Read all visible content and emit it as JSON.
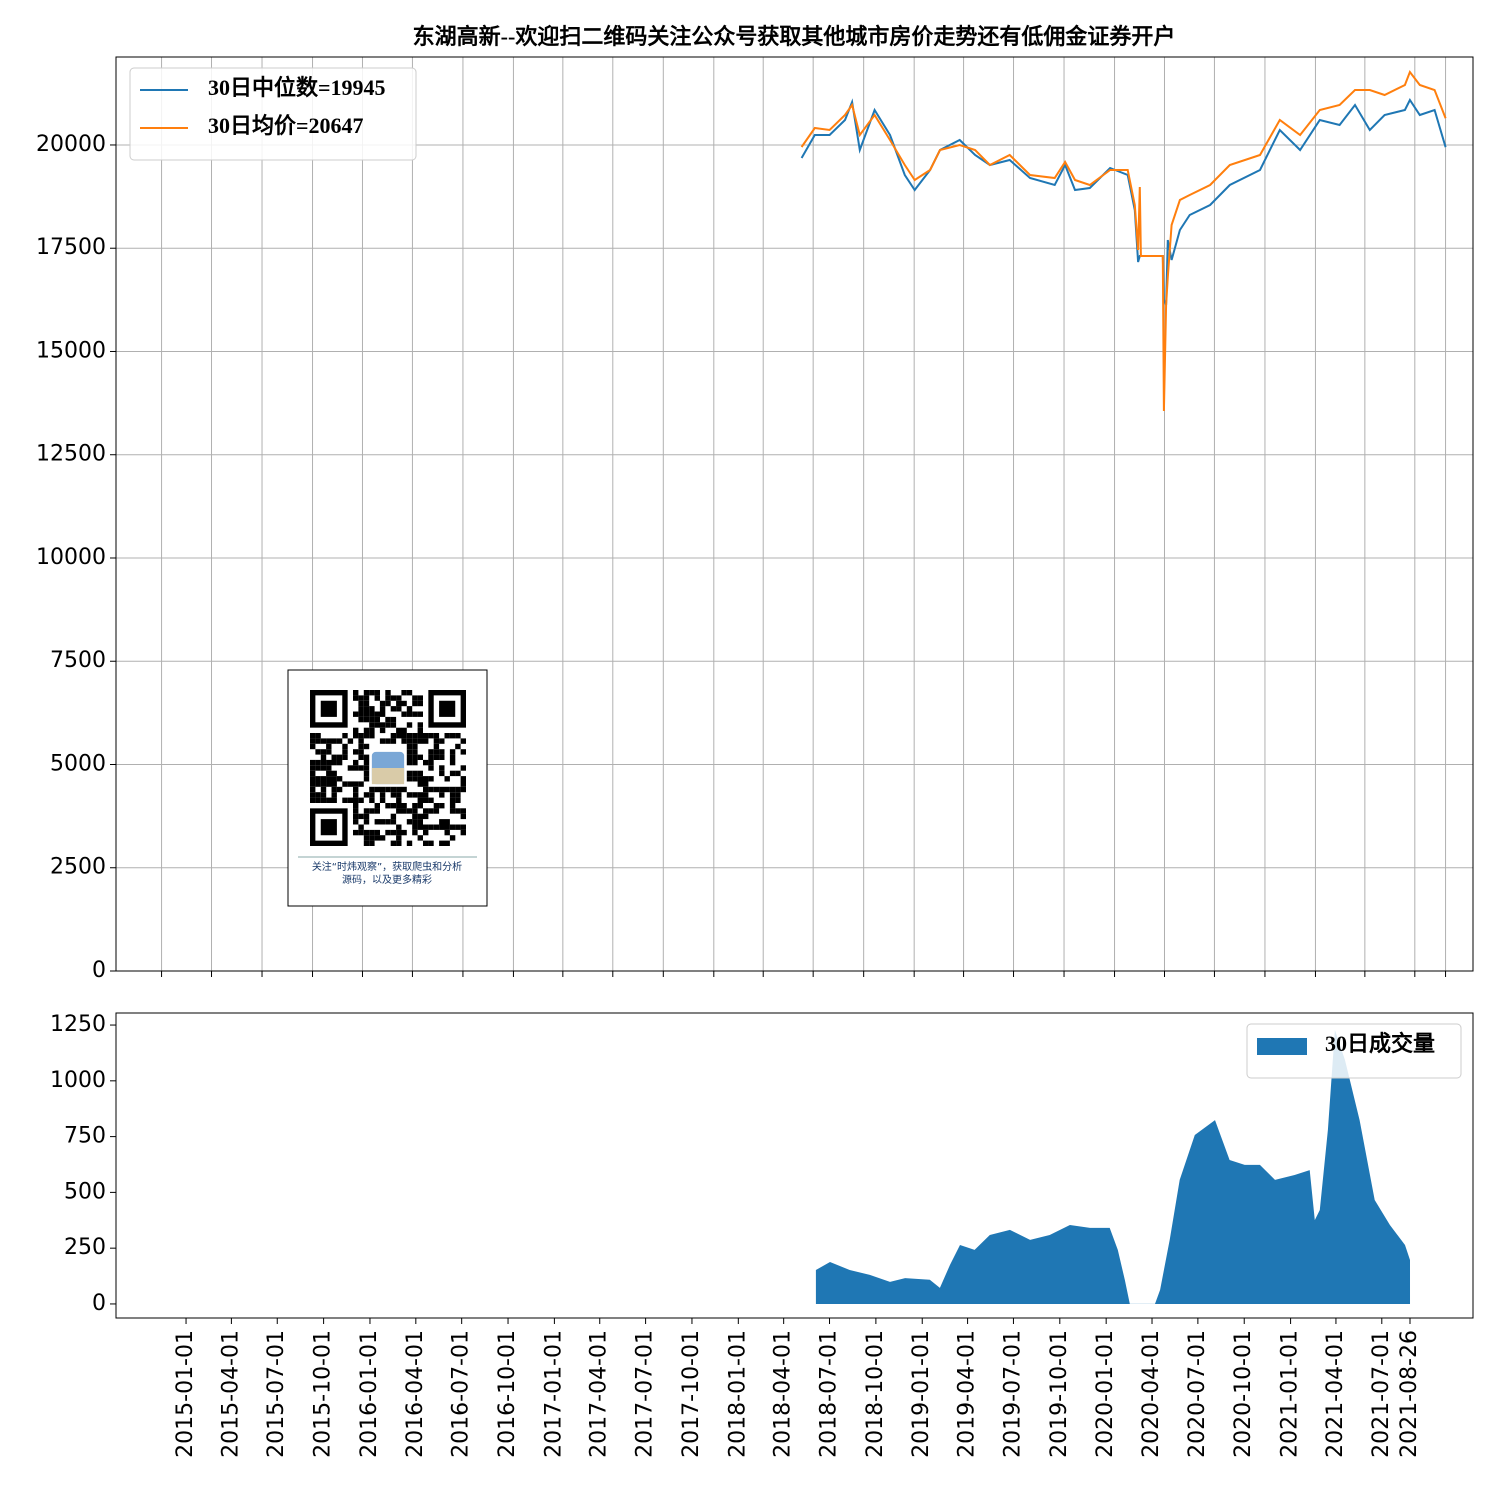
{
  "chart_data": [
    {
      "type": "line",
      "title": "东湖高新--欢迎扫二维码关注公众号获取其他城市房价走势还有低佣金证券开户",
      "legend": "upper left",
      "grid": true,
      "xlim": [
        "2015-01-08",
        "2021-10-15"
      ],
      "xticks": [
        "2015-04-01",
        "2015-07-01",
        "2015-10-01",
        "2016-01-01",
        "2016-04-01",
        "2016-07-01",
        "2016-10-01",
        "2017-01-01",
        "2017-04-01",
        "2017-07-01",
        "2017-10-01",
        "2018-01-01",
        "2018-04-01",
        "2018-07-01",
        "2018-10-01",
        "2019-01-01",
        "2019-04-01",
        "2019-07-01",
        "2019-10-01",
        "2020-01-01",
        "2020-04-01",
        "2020-07-01",
        "2020-10-01",
        "2021-01-01",
        "2021-04-01",
        "2021-07-01",
        "2021-08-26"
      ],
      "ylim": [
        0,
        22130
      ],
      "yticks": [
        0,
        2500,
        5000,
        7500,
        10000,
        12500,
        15000,
        17500,
        20000
      ],
      "x": [
        "2018-06-10",
        "2018-07-04",
        "2018-07-31",
        "2018-08-28",
        "2018-09-10",
        "2018-09-24",
        "2018-10-21",
        "2018-11-18",
        "2018-12-15",
        "2019-01-02",
        "2019-01-30",
        "2019-02-17",
        "2019-03-25",
        "2019-04-22",
        "2019-05-19",
        "2019-06-24",
        "2019-07-31",
        "2019-09-14",
        "2019-10-03",
        "2019-10-21",
        "2019-11-17",
        "2019-12-24",
        "2020-01-25",
        "2020-02-07",
        "2020-02-13",
        "2020-02-16",
        "2020-02-18",
        "2020-03-29",
        "2020-03-31",
        "2020-04-04",
        "2020-04-07",
        "2020-04-14",
        "2020-04-29",
        "2020-05-17",
        "2020-06-23",
        "2020-07-29",
        "2020-09-22",
        "2020-10-28",
        "2020-12-04",
        "2021-01-09",
        "2021-02-14",
        "2021-03-14",
        "2021-04-10",
        "2021-05-07",
        "2021-06-13",
        "2021-06-22",
        "2021-07-10",
        "2021-08-06",
        "2021-08-26"
      ],
      "series": [
        {
          "name": "30日中位数=19945",
          "color": "#1f77b4",
          "values": [
            19685,
            20242,
            20242,
            20605,
            21041,
            19879,
            20847,
            20242,
            19274,
            18910,
            19395,
            19879,
            20121,
            19758,
            19516,
            19637,
            19201,
            19031,
            19516,
            18910,
            18958,
            19443,
            19274,
            18426,
            17167,
            17312,
            17312,
            17312,
            16247,
            16126,
            17700,
            17215,
            17942,
            18305,
            18547,
            19031,
            19395,
            20363,
            19879,
            20605,
            20484,
            20968,
            20363,
            20726,
            20847,
            21090,
            20726,
            20847,
            19945
          ]
        },
        {
          "name": "30日均价=20647",
          "color": "#ff7f0e",
          "values": [
            19952,
            20412,
            20363,
            20726,
            20968,
            20242,
            20726,
            20121,
            19516,
            19153,
            19395,
            19879,
            20000,
            19879,
            19516,
            19758,
            19274,
            19201,
            19588,
            19153,
            19031,
            19395,
            19395,
            18547,
            17458,
            18983,
            17312,
            17312,
            13559,
            16126,
            16800,
            18063,
            18668,
            18789,
            19031,
            19516,
            19758,
            20605,
            20242,
            20847,
            20968,
            21331,
            21331,
            21210,
            21453,
            21768,
            21453,
            21331,
            20647
          ]
        }
      ]
    },
    {
      "type": "area",
      "legend": "upper right",
      "grid": false,
      "xlim": [
        "2014-08-15",
        "2021-12-29"
      ],
      "xticks": [
        "2015-01-01",
        "2015-04-01",
        "2015-07-01",
        "2015-10-01",
        "2016-01-01",
        "2016-04-01",
        "2016-07-01",
        "2016-10-01",
        "2017-01-01",
        "2017-04-01",
        "2017-07-01",
        "2017-10-01",
        "2018-01-01",
        "2018-04-01",
        "2018-07-01",
        "2018-10-01",
        "2019-01-01",
        "2019-04-01",
        "2019-07-01",
        "2019-10-01",
        "2020-01-01",
        "2020-04-01",
        "2020-07-01",
        "2020-10-01",
        "2021-01-01",
        "2021-04-01",
        "2021-07-01",
        "2021-08-26"
      ],
      "ylim": [
        -63,
        1304
      ],
      "yticks": [
        0,
        250,
        500,
        750,
        1000,
        1250
      ],
      "x": [
        "2018-06-04",
        "2018-07-02",
        "2018-08-10",
        "2018-09-19",
        "2018-10-29",
        "2018-11-28",
        "2019-01-16",
        "2019-02-05",
        "2019-02-25",
        "2019-03-17",
        "2019-04-15",
        "2019-05-15",
        "2019-06-24",
        "2019-08-03",
        "2019-09-11",
        "2019-10-21",
        "2019-11-30",
        "2020-01-08",
        "2020-01-24",
        "2020-02-07",
        "2020-02-17",
        "2020-04-07",
        "2020-04-17",
        "2020-05-06",
        "2020-05-26",
        "2020-06-25",
        "2020-08-04",
        "2020-09-02",
        "2020-10-02",
        "2020-11-01",
        "2020-12-01",
        "2021-01-09",
        "2021-02-08",
        "2021-02-18",
        "2021-02-28",
        "2021-03-16",
        "2021-03-30",
        "2021-04-19",
        "2021-05-18",
        "2021-06-17",
        "2021-07-17",
        "2021-08-16",
        "2021-08-26"
      ],
      "series": [
        {
          "name": "30日成交量",
          "color": "#1f77b4",
          "values": [
            152,
            188,
            152,
            130,
            99,
            116,
            108,
            72,
            175,
            264,
            242,
            309,
            332,
            287,
            309,
            354,
            341,
            341,
            242,
            108,
            0,
            0,
            63,
            287,
            556,
            757,
            824,
            645,
            623,
            623,
            556,
            578,
            600,
            376,
            421,
            780,
            1228,
            1093,
            824,
            466,
            354,
            264,
            197
          ]
        }
      ]
    }
  ],
  "qr_caption": [
    "关注“时炜观察”，获取爬虫和分析",
    "源码，以及更多精彩"
  ]
}
